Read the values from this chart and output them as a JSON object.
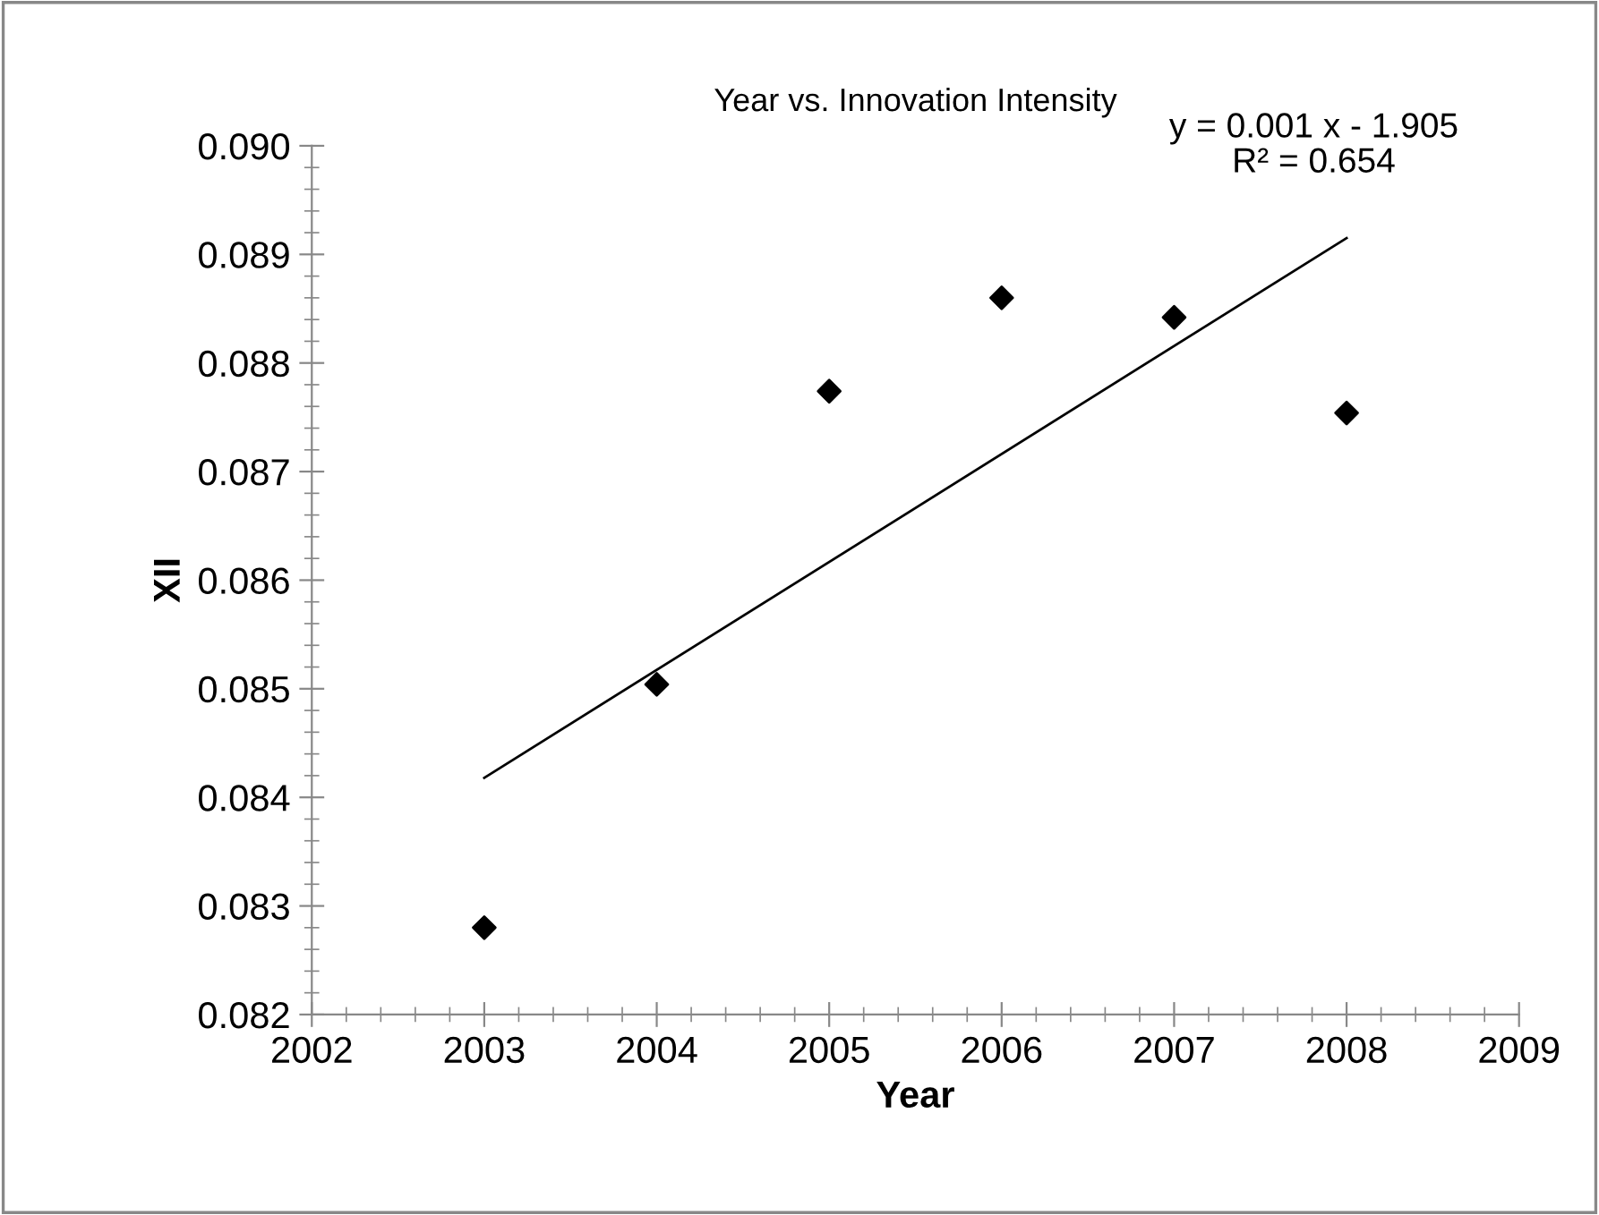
{
  "chart_data": {
    "type": "scatter",
    "title": "Year vs. Innovation Intensity",
    "xlabel": "Year",
    "ylabel": "XII",
    "series": [
      {
        "color": "#000000",
        "marker": "diamond",
        "x": [
          2003,
          2004,
          2005,
          2006,
          2007,
          2008
        ],
        "values": [
          0.0828,
          0.08504,
          0.08774,
          0.0886,
          0.08842,
          0.08754
        ]
      },
      {
        "type": "line",
        "color": "#000000",
        "x": [
          2003,
          2008
        ],
        "values": [
          0.08418,
          0.08915
        ]
      }
    ],
    "annotations": [
      "y = 0.001 x - 1.905\nR² = 0.654"
    ],
    "xlim": [
      2002,
      2009
    ],
    "xticks": [
      2002,
      2003,
      2004,
      2005,
      2006,
      2007,
      2008,
      2009
    ],
    "ylim": [
      0.082,
      0.09
    ],
    "yticks": [
      {
        "value": 0.082,
        "label": "0.082"
      },
      {
        "value": 0.083,
        "label": "0.083"
      },
      {
        "value": 0.084,
        "label": "0.084"
      },
      {
        "value": 0.085,
        "label": "0.085"
      },
      {
        "value": 0.086,
        "label": "0.086"
      },
      {
        "value": 0.087,
        "label": "0.087"
      },
      {
        "value": 0.088,
        "label": "0.088"
      },
      {
        "value": 0.089,
        "label": "0.089"
      },
      {
        "value": 0.09,
        "label": "0.090"
      }
    ],
    "grid": false,
    "legend": false
  }
}
